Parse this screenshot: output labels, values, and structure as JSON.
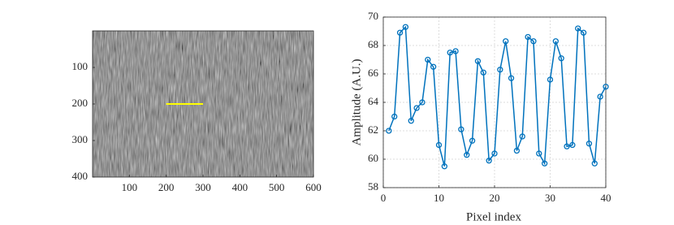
{
  "chart_data": [
    {
      "type": "image",
      "xlim": [
        0,
        600
      ],
      "ylim": [
        0,
        400
      ],
      "y_reversed": true,
      "xticks": [
        100,
        200,
        300,
        400,
        500,
        600
      ],
      "yticks": [
        100,
        200,
        300,
        400
      ],
      "segment": {
        "x": [
          200,
          300
        ],
        "y": [
          200,
          200
        ],
        "color": "#ffff00"
      }
    },
    {
      "type": "line",
      "xlabel": "Pixel index",
      "ylabel": "Amplitude (A.U.)",
      "x": [
        1,
        2,
        3,
        4,
        5,
        6,
        7,
        8,
        9,
        10,
        11,
        12,
        13,
        14,
        15,
        16,
        17,
        18,
        19,
        20,
        21,
        22,
        23,
        24,
        25,
        26,
        27,
        28,
        29,
        30,
        31,
        32,
        33,
        34,
        35,
        36,
        37,
        38,
        39,
        40
      ],
      "series": [
        {
          "color": "#0072bd",
          "values": [
            62.0,
            63.0,
            68.9,
            69.3,
            62.7,
            63.6,
            64.0,
            67.0,
            66.5,
            61.0,
            59.5,
            67.5,
            67.6,
            62.1,
            60.3,
            61.3,
            66.9,
            66.1,
            59.9,
            60.4,
            66.3,
            68.3,
            65.7,
            60.6,
            61.6,
            68.6,
            68.3,
            60.4,
            59.7,
            65.6,
            68.3,
            67.1,
            60.9,
            61.0,
            69.2,
            68.9,
            61.1,
            59.7,
            64.4,
            65.1
          ]
        }
      ],
      "xlim": [
        0,
        40
      ],
      "ylim": [
        58,
        70
      ],
      "xticks": [
        0,
        10,
        20,
        30,
        40
      ],
      "yticks": [
        58,
        60,
        62,
        64,
        66,
        68,
        70
      ],
      "grid": true
    }
  ]
}
